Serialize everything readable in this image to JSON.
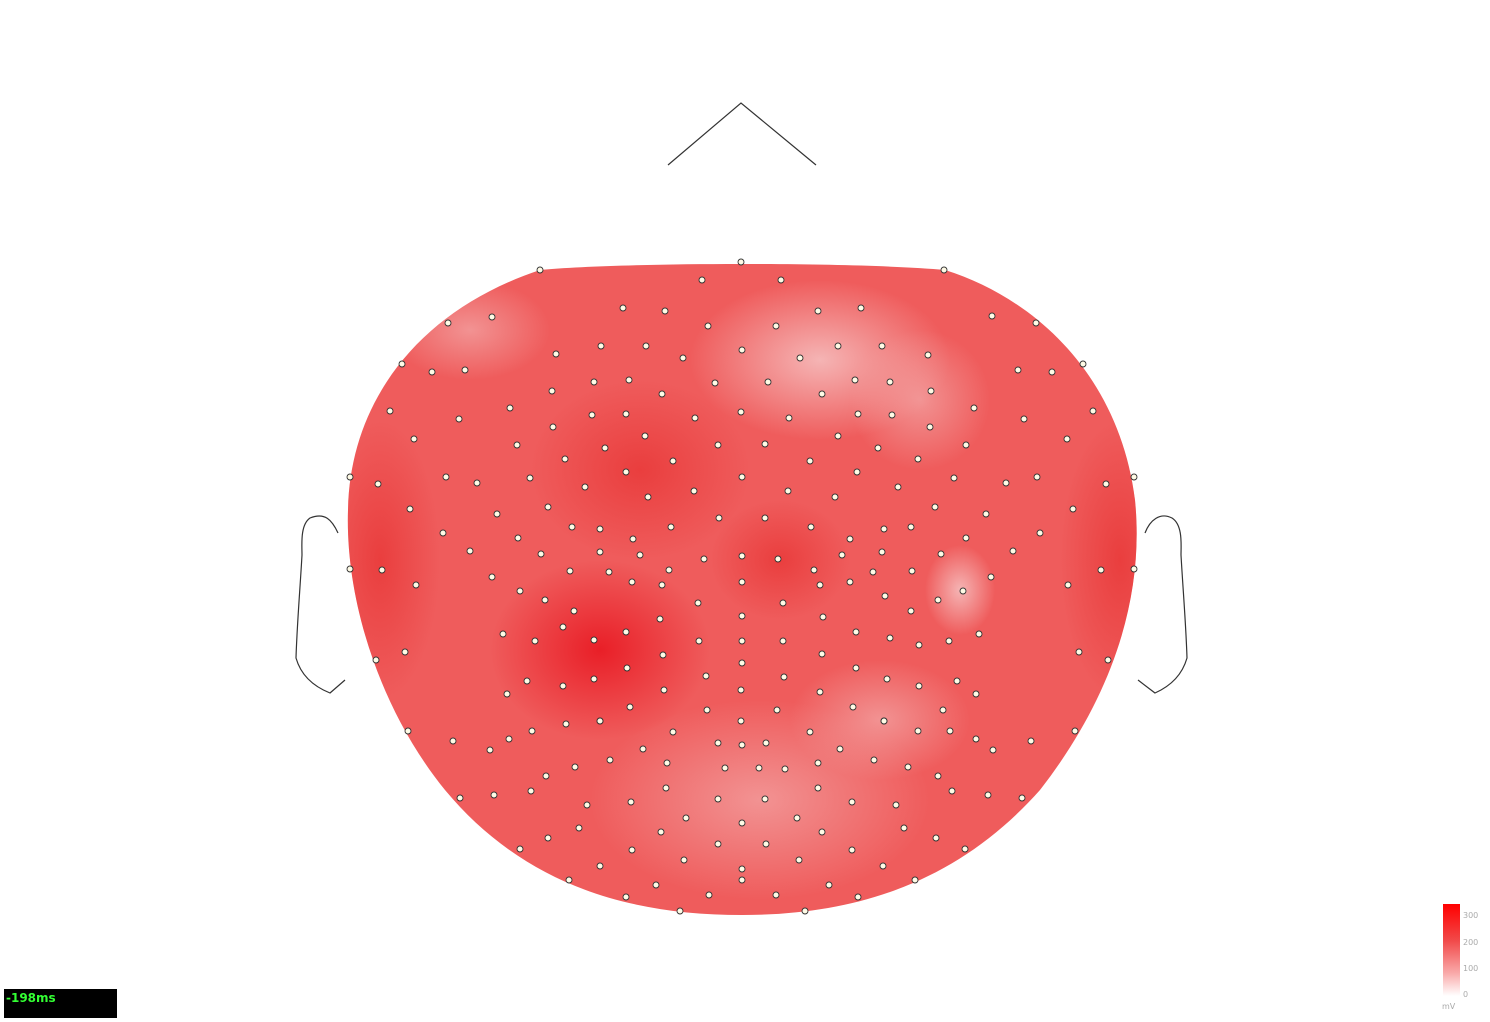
{
  "time_display": {
    "label": "-198ms"
  },
  "colorbar": {
    "unit": "mV",
    "ticks": [
      "300",
      "200",
      "100",
      "0"
    ],
    "color_max": "#ff0000",
    "color_min": "#ffffff"
  },
  "colors": {
    "surface_base": "#ef5c5c",
    "sensor_fill": "#fffbe6",
    "outline": "#333333"
  },
  "map": {
    "head_outline": "head-outline",
    "nose": "nose-icon",
    "ears": [
      "left-ear-icon",
      "right-ear-icon"
    ],
    "sensor_count": 256
  }
}
